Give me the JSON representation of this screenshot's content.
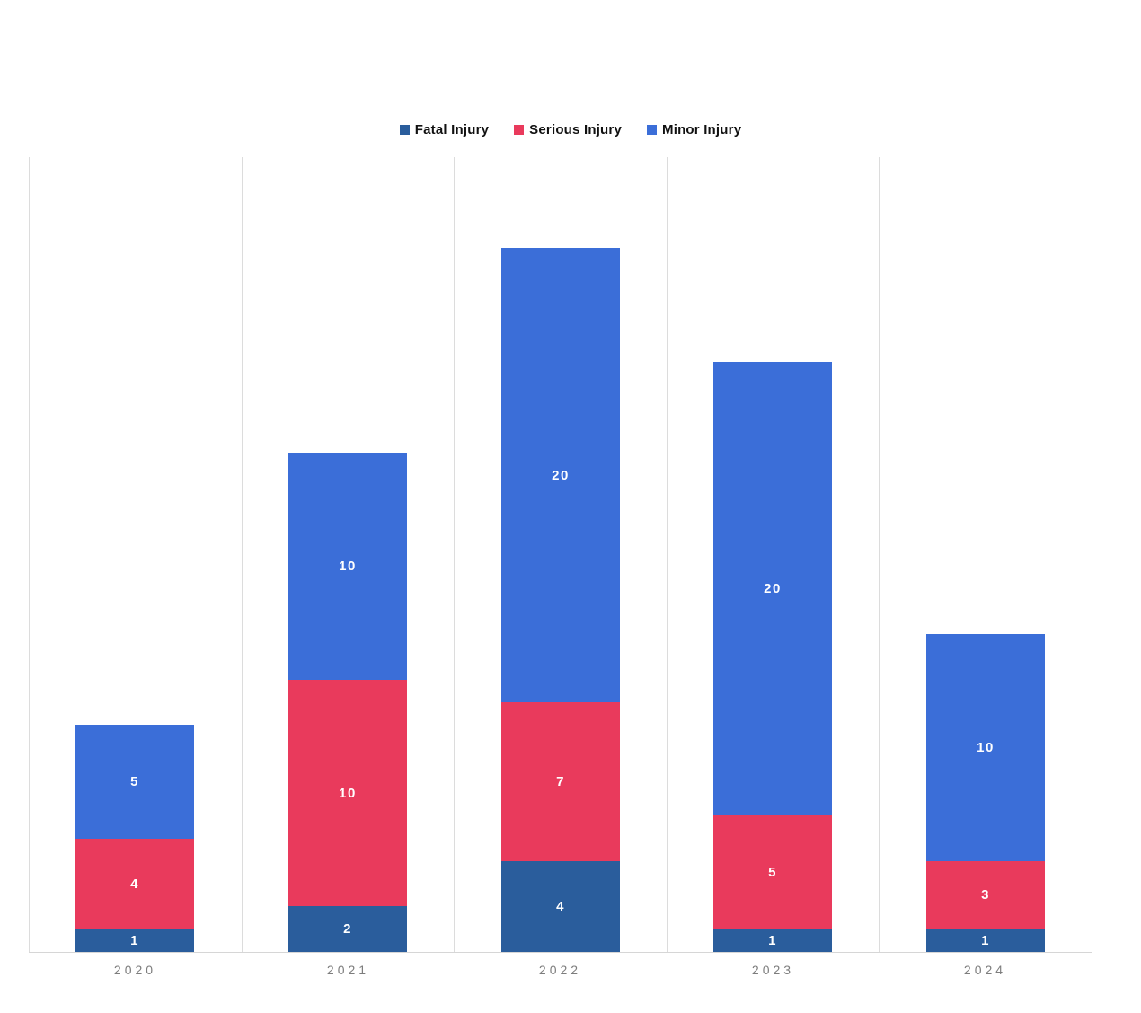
{
  "chart_data": {
    "type": "bar",
    "stacked": true,
    "title": "",
    "xlabel": "",
    "ylabel": "",
    "categories": [
      "2020",
      "2021",
      "2022",
      "2023",
      "2024"
    ],
    "series": [
      {
        "name": "Fatal Injury",
        "color": "#2a5d9c",
        "values": [
          1,
          2,
          4,
          1,
          1
        ]
      },
      {
        "name": "Serious Injury",
        "color": "#e93a5c",
        "values": [
          4,
          10,
          7,
          5,
          3
        ]
      },
      {
        "name": "Minor Injury",
        "color": "#3b6ed8",
        "values": [
          5,
          10,
          20,
          20,
          10
        ]
      }
    ],
    "totals": [
      10,
      22,
      31,
      26,
      14
    ],
    "ylim": [
      0,
      35
    ],
    "grid": "vertical-category-boundaries",
    "legend_position": "top-center",
    "data_label_color": "#ffffff",
    "axis_line_color": "#d6d6d6",
    "gridline_color": "#dcdcdc",
    "axis_label_color": "#7d7d7d"
  }
}
